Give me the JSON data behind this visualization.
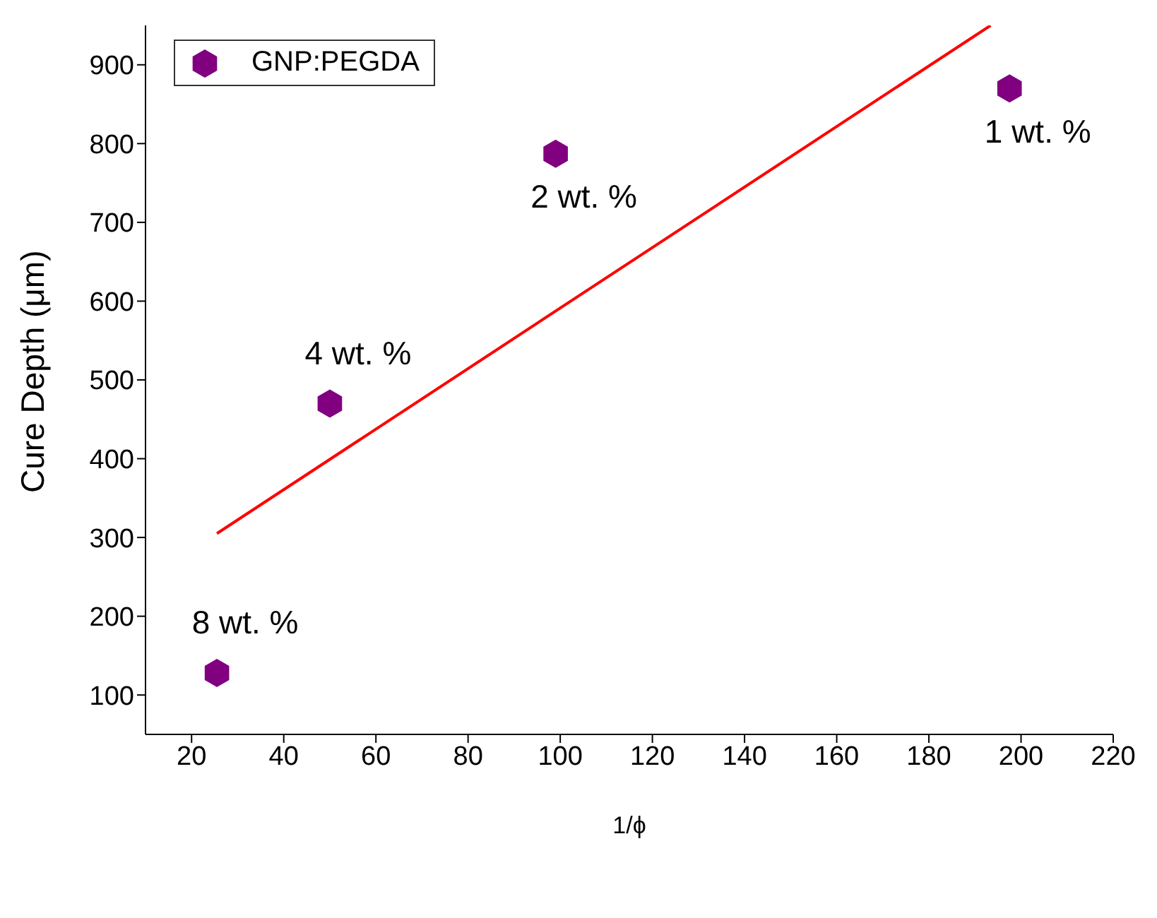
{
  "chart_data": {
    "type": "scatter",
    "xlabel": "1/ϕ",
    "ylabel": "Cure Depth (μm)",
    "x": [
      25.5,
      50,
      99,
      197.5
    ],
    "series": [
      {
        "name": "GNP:PEGDA",
        "color": "#800080",
        "values": [
          128,
          470,
          787,
          870
        ]
      },
      {
        "type": "line",
        "color": "#ff0000",
        "x": [
          25.5,
          193.4
        ],
        "values": [
          305,
          950
        ]
      }
    ],
    "xlim": [
      10,
      220
    ],
    "xticks": [
      20,
      40,
      60,
      80,
      100,
      120,
      140,
      160,
      180,
      200,
      220
    ],
    "ylim": [
      50,
      950
    ],
    "yticks": [
      100,
      200,
      300,
      400,
      500,
      600,
      700,
      800,
      900
    ],
    "annotations": [
      {
        "text": "8 wt. %",
        "x": 25.5,
        "y": 128
      },
      {
        "text": "4 wt. %",
        "x": 50,
        "y": 470
      },
      {
        "text": "2 wt. %",
        "x": 99,
        "y": 787
      },
      {
        "text": "1 wt. %",
        "x": 197.5,
        "y": 870
      }
    ],
    "legend": "top left",
    "grid": false
  }
}
